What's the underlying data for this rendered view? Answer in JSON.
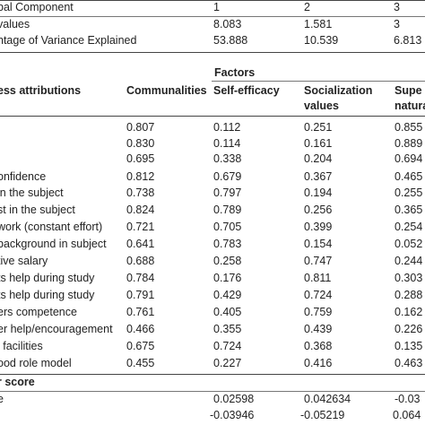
{
  "top_table": {
    "header": {
      "label": "bal Component",
      "c1": "1",
      "c2": "2",
      "c3": "3"
    },
    "rows": [
      {
        "label": "values",
        "c1": "8.083",
        "c2": "1.581",
        "c3": "3"
      },
      {
        "label": "ntage of Variance Explained",
        "c1": "53.888",
        "c2": "10.539",
        "c3": "6.813"
      }
    ]
  },
  "factors_title": "Factors",
  "header": {
    "attr": "ess attributions",
    "communalities": "Communalities",
    "self_efficacy": "Self-efficacy",
    "socialization_1": "Socialization",
    "socialization_2": "values",
    "super_1": "Supe",
    "super_2": "natura"
  },
  "rows": [
    {
      "label": "",
      "comm": "0.807",
      "se": "0.112",
      "soc": "0.251",
      "sup": "0.855"
    },
    {
      "label": "",
      "comm": "0.830",
      "se": "0.114",
      "soc": "0.161",
      "sup": "0.889"
    },
    {
      "label": "",
      "comm": "0.695",
      "se": "0.338",
      "soc": "0.204",
      "sup": "0.694"
    },
    {
      "label": "onfidence",
      "comm": "0.812",
      "se": "0.679",
      "soc": "0.367",
      "sup": "0.465"
    },
    {
      "label": "in the subject",
      "comm": "0.738",
      "se": "0.797",
      "soc": "0.194",
      "sup": "0.255"
    },
    {
      "label": "st in the subject",
      "comm": "0.824",
      "se": "0.789",
      "soc": "0.256",
      "sup": "0.365"
    },
    {
      "label": "work (constant effort)",
      "comm": "0.721",
      "se": "0.705",
      "soc": "0.399",
      "sup": "0.254"
    },
    {
      "label": "background in subject",
      "comm": "0.641",
      "se": "0.783",
      "soc": "0.154",
      "sup": "0.052"
    },
    {
      "label": "tive salary",
      "comm": "0.688",
      "se": "0.258",
      "soc": "0.747",
      "sup": "0.244"
    },
    {
      "label": "ts help during study",
      "comm": "0.784",
      "se": "0.176",
      "soc": "0.811",
      "sup": "0.303"
    },
    {
      "label": "ts help during study",
      "comm": "0.791",
      "se": "0.429",
      "soc": "0.724",
      "sup": "0.288"
    },
    {
      "label": "ers competence",
      "comm": "0.761",
      "se": "0.405",
      "soc": "0.759",
      "sup": "0.162"
    },
    {
      "label": "er help/encouragement",
      "comm": "0.466",
      "se": "0.355",
      "soc": "0.439",
      "sup": "0.226"
    },
    {
      "label": "l facilities",
      "comm": "0.675",
      "se": "0.724",
      "soc": "0.368",
      "sup": "0.135"
    },
    {
      "label": "ood role model",
      "comm": "0.455",
      "se": "0.227",
      "soc": "0.416",
      "sup": "0.463"
    }
  ],
  "factor_score": {
    "title": "r score",
    "rows": [
      {
        "label": "e",
        "se": "0.02598",
        "soc": "0.042634",
        "sup": "-0.03"
      },
      {
        "label": "",
        "se": "-0.03946",
        "soc": "-0.05219",
        "sup": "0.064"
      }
    ]
  }
}
